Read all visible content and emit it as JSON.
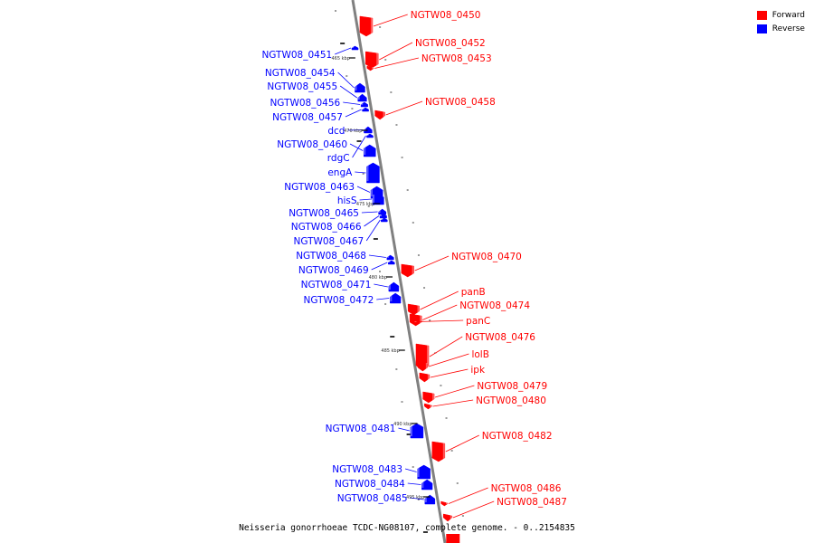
{
  "caption": "Neisseria gonorrhoeae TCDC-NG08107, complete genome. - 0..2154835",
  "colors": {
    "forward": "#ff0000",
    "reverse": "#0000ff",
    "backbone": "#808080"
  },
  "legend": [
    {
      "label": "Forward",
      "color": "#ff0000"
    },
    {
      "label": "Reverse",
      "color": "#0000ff"
    }
  ],
  "scale_labels": [
    {
      "text": "465 kbp",
      "kb": 465
    },
    {
      "text": "470 kbp",
      "kb": 470
    },
    {
      "text": "475 kbp",
      "kb": 475
    },
    {
      "text": "480 kbp",
      "kb": 480
    },
    {
      "text": "485 kbp",
      "kb": 485
    },
    {
      "text": "490 kbp",
      "kb": 490
    },
    {
      "text": "495 kbp",
      "kb": 495
    }
  ],
  "genes": [
    {
      "name": "NGTW08_0450",
      "strand": "forward"
    },
    {
      "name": "NGTW08_0451",
      "strand": "reverse"
    },
    {
      "name": "NGTW08_0452",
      "strand": "forward"
    },
    {
      "name": "NGTW08_0453",
      "strand": "forward"
    },
    {
      "name": "NGTW08_0454",
      "strand": "reverse"
    },
    {
      "name": "NGTW08_0455",
      "strand": "reverse"
    },
    {
      "name": "NGTW08_0456",
      "strand": "reverse"
    },
    {
      "name": "NGTW08_0457",
      "strand": "reverse"
    },
    {
      "name": "NGTW08_0458",
      "strand": "forward"
    },
    {
      "name": "dcd",
      "strand": "reverse"
    },
    {
      "name": "NGTW08_0460",
      "strand": "reverse"
    },
    {
      "name": "rdgC",
      "strand": "reverse"
    },
    {
      "name": "engA",
      "strand": "reverse"
    },
    {
      "name": "NGTW08_0463",
      "strand": "reverse"
    },
    {
      "name": "hisS",
      "strand": "reverse"
    },
    {
      "name": "NGTW08_0465",
      "strand": "reverse"
    },
    {
      "name": "NGTW08_0466",
      "strand": "reverse"
    },
    {
      "name": "NGTW08_0467",
      "strand": "reverse"
    },
    {
      "name": "NGTW08_0468",
      "strand": "reverse"
    },
    {
      "name": "NGTW08_0469",
      "strand": "reverse"
    },
    {
      "name": "NGTW08_0470",
      "strand": "forward"
    },
    {
      "name": "NGTW08_0471",
      "strand": "reverse"
    },
    {
      "name": "NGTW08_0472",
      "strand": "reverse"
    },
    {
      "name": "panB",
      "strand": "forward"
    },
    {
      "name": "NGTW08_0474",
      "strand": "forward"
    },
    {
      "name": "panC",
      "strand": "forward"
    },
    {
      "name": "NGTW08_0476",
      "strand": "forward"
    },
    {
      "name": "lolB",
      "strand": "forward"
    },
    {
      "name": "ipk",
      "strand": "forward"
    },
    {
      "name": "NGTW08_0479",
      "strand": "forward"
    },
    {
      "name": "NGTW08_0480",
      "strand": "forward"
    },
    {
      "name": "NGTW08_0481",
      "strand": "reverse"
    },
    {
      "name": "NGTW08_0482",
      "strand": "forward"
    },
    {
      "name": "NGTW08_0483",
      "strand": "reverse"
    },
    {
      "name": "NGTW08_0484",
      "strand": "reverse"
    },
    {
      "name": "NGTW08_0485",
      "strand": "reverse"
    },
    {
      "name": "NGTW08_0486",
      "strand": "forward"
    },
    {
      "name": "NGTW08_0487",
      "strand": "forward"
    }
  ]
}
